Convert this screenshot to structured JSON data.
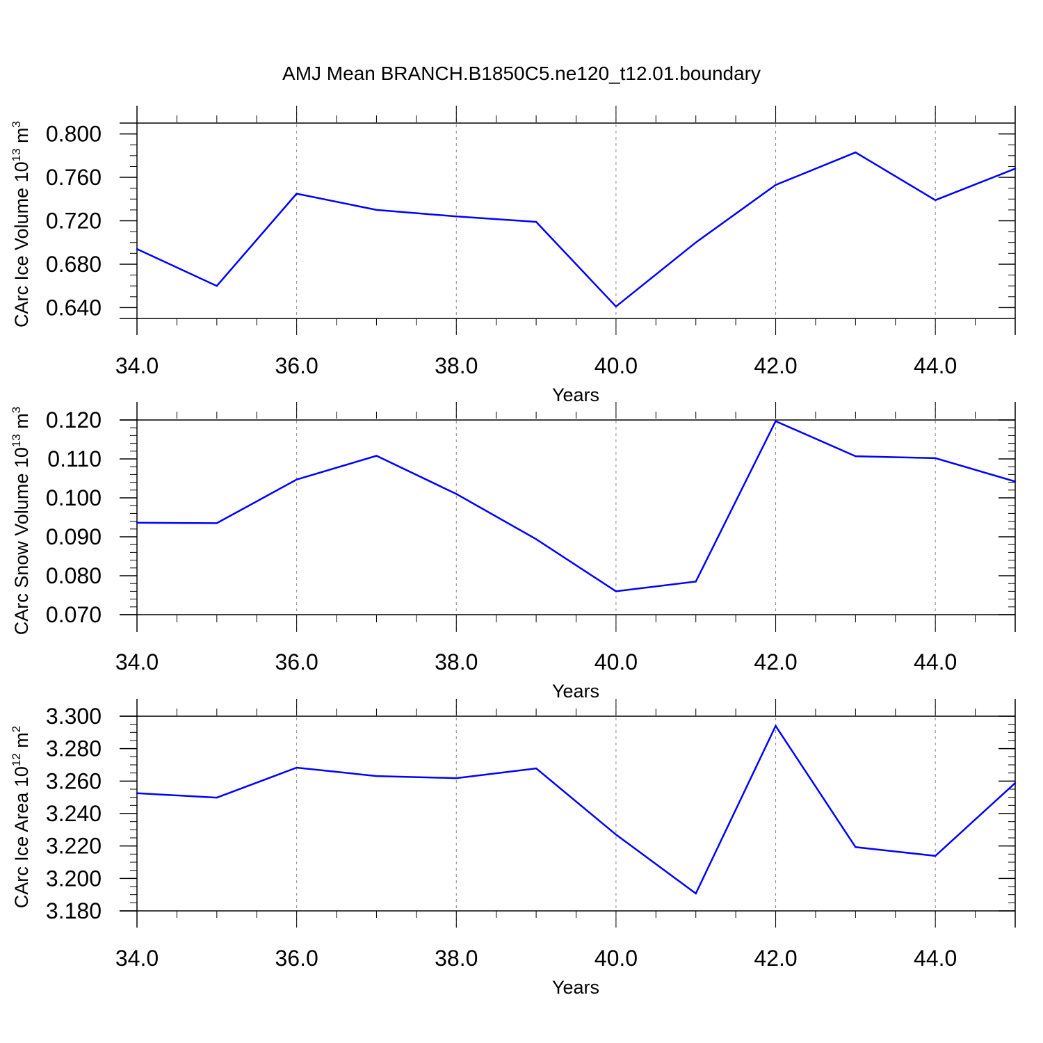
{
  "chart_data": {
    "title": "AMJ Mean BRANCH.B1850C5.ne120_t12.01.boundary",
    "panels": [
      {
        "type": "line",
        "name": "CArc Ice Volume",
        "ylabel_main": "CArc Ice Volume 10",
        "ylabel_exp": "13",
        "ylabel_unit": " m",
        "ylabel_unit_exp": "3",
        "xlabel": "Years",
        "xlim": [
          34,
          45
        ],
        "ylim": [
          0.63,
          0.81
        ],
        "x_ticks": [
          "34.0",
          "36.0",
          "38.0",
          "40.0",
          "42.0",
          "44.0"
        ],
        "y_ticks": [
          "0.640",
          "0.680",
          "0.720",
          "0.760",
          "0.800"
        ],
        "y_major_step": 0.04,
        "y_minor_step": 0.01,
        "x": [
          34,
          35,
          36,
          37,
          38,
          39,
          40,
          41,
          42,
          43,
          44,
          45
        ],
        "values": [
          0.694,
          0.66,
          0.745,
          0.73,
          0.724,
          0.719,
          0.641,
          0.7,
          0.753,
          0.783,
          0.739,
          0.768
        ]
      },
      {
        "type": "line",
        "name": "CArc Snow Volume",
        "ylabel_main": "CArc Snow Volume 10",
        "ylabel_exp": "13",
        "ylabel_unit": " m",
        "ylabel_unit_exp": "3",
        "xlabel": "Years",
        "xlim": [
          34,
          45
        ],
        "ylim": [
          0.07,
          0.12
        ],
        "x_ticks": [
          "34.0",
          "36.0",
          "38.0",
          "40.0",
          "42.0",
          "44.0"
        ],
        "y_ticks": [
          "0.070",
          "0.080",
          "0.090",
          "0.100",
          "0.110",
          "0.120"
        ],
        "y_major_step": 0.01,
        "y_minor_step": 0.002,
        "x": [
          34,
          35,
          36,
          37,
          38,
          39,
          40,
          41,
          42,
          43,
          44,
          45
        ],
        "values": [
          0.0936,
          0.0935,
          0.1047,
          0.1108,
          0.101,
          0.0894,
          0.076,
          0.0785,
          0.1197,
          0.1107,
          0.1102,
          0.1042
        ]
      },
      {
        "type": "line",
        "name": "CArc Ice Area",
        "ylabel_main": "CArc Ice Area 10",
        "ylabel_exp": "12",
        "ylabel_unit": " m",
        "ylabel_unit_exp": "2",
        "xlabel": "Years",
        "xlim": [
          34,
          45
        ],
        "ylim": [
          3.18,
          3.3
        ],
        "x_ticks": [
          "34.0",
          "36.0",
          "38.0",
          "40.0",
          "42.0",
          "44.0"
        ],
        "y_ticks": [
          "3.180",
          "3.200",
          "3.220",
          "3.240",
          "3.260",
          "3.280",
          "3.300"
        ],
        "y_major_step": 0.02,
        "y_minor_step": 0.005,
        "x": [
          34,
          35,
          36,
          37,
          38,
          39,
          40,
          41,
          42,
          43,
          44,
          45
        ],
        "values": [
          3.2525,
          3.2498,
          3.2683,
          3.2631,
          3.2618,
          3.2678,
          3.227,
          3.1907,
          3.294,
          3.2193,
          3.2139,
          3.2588
        ]
      }
    ],
    "line_color": "#0000ff",
    "grid": "dashed vertical lines at labeled x ticks"
  }
}
